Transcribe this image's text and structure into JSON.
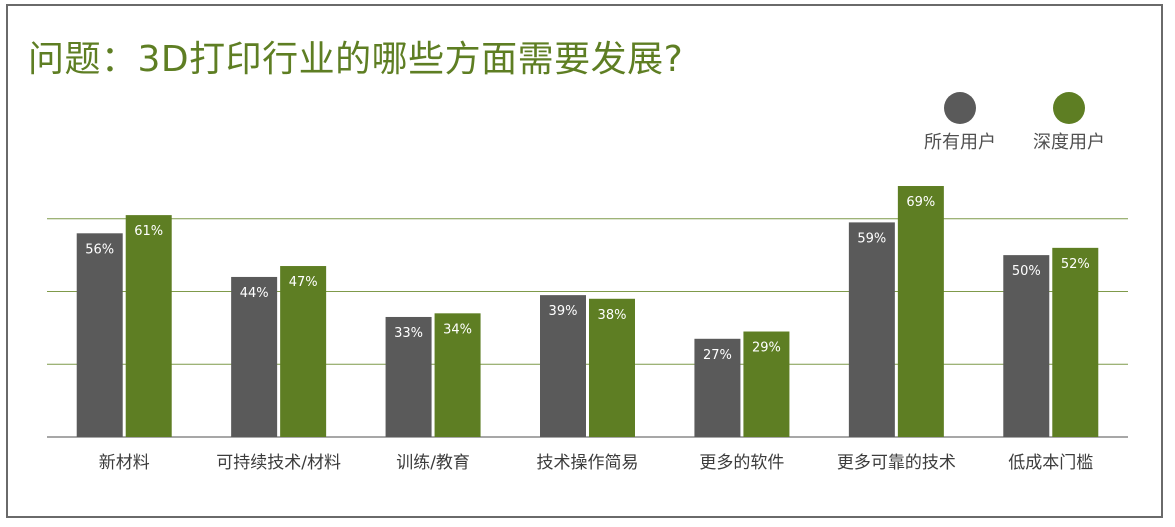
{
  "chart_data": {
    "type": "bar",
    "title": "问题：3D打印行业的哪些方面需要发展?",
    "categories": [
      "新材料",
      "可持续技术/材料",
      "训练/教育",
      "技术操作简易",
      "更多的软件",
      "更多可靠的技术",
      "低成本门槛"
    ],
    "series": [
      {
        "name": "所有用户",
        "color": "#5a5a5a",
        "values": [
          56,
          44,
          33,
          39,
          27,
          59,
          50
        ],
        "labels": [
          "56%",
          "44%",
          "33%",
          "39%",
          "27%",
          "59%",
          "50%"
        ]
      },
      {
        "name": "深度用户",
        "color": "#5e7e23",
        "values": [
          61,
          47,
          34,
          38,
          29,
          69,
          52
        ],
        "labels": [
          "61%",
          "47%",
          "34%",
          "38%",
          "29%",
          "69%",
          "52%"
        ]
      }
    ],
    "ylim": [
      0,
      80
    ],
    "grid": true,
    "legend": "top-right",
    "gridline_color": "#7f9a4a"
  }
}
